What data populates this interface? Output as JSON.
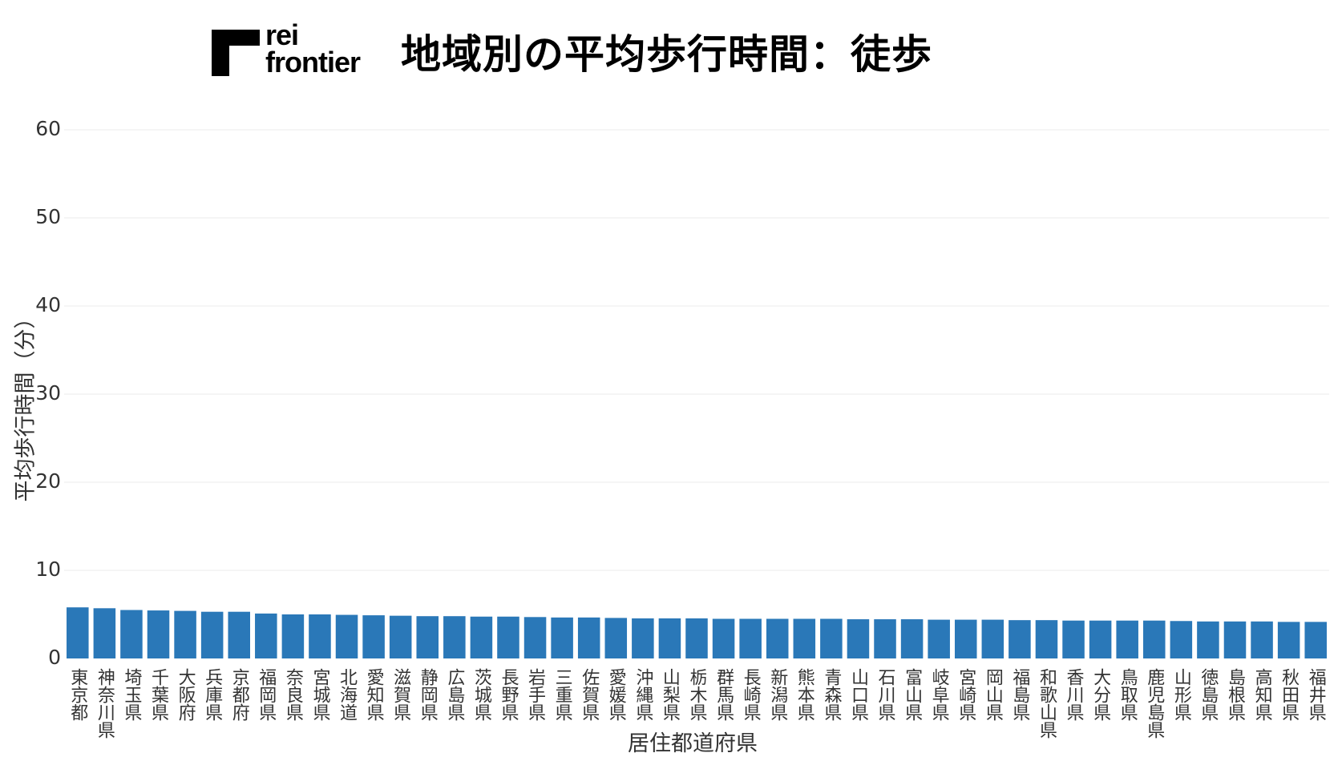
{
  "brand": {
    "logo_line1": "rei",
    "logo_line2": "frontier"
  },
  "colors": {
    "bar": "#2a78b8",
    "grid": "#ebebeb",
    "text": "#333333"
  },
  "chart_data": {
    "type": "bar",
    "title": "地域別の平均歩行時間：徒歩",
    "xlabel": "居住都道府県",
    "ylabel": "平均歩行時間（分）",
    "ylim": [
      0,
      60
    ],
    "yticks": [
      0,
      10,
      20,
      30,
      40,
      50,
      60
    ],
    "grid": true,
    "categories": [
      "東京都",
      "神奈川県",
      "埼玉県",
      "千葉県",
      "大阪府",
      "兵庫県",
      "京都府",
      "福岡県",
      "奈良県",
      "宮城県",
      "北海道",
      "愛知県",
      "滋賀県",
      "静岡県",
      "広島県",
      "茨城県",
      "長野県",
      "岩手県",
      "三重県",
      "佐賀県",
      "愛媛県",
      "沖縄県",
      "山梨県",
      "栃木県",
      "群馬県",
      "長崎県",
      "新潟県",
      "熊本県",
      "青森県",
      "山口県",
      "石川県",
      "富山県",
      "岐阜県",
      "宮崎県",
      "岡山県",
      "福島県",
      "和歌山県",
      "香川県",
      "大分県",
      "鳥取県",
      "鹿児島県",
      "山形県",
      "徳島県",
      "島根県",
      "高知県",
      "秋田県",
      "福井県"
    ],
    "values": [
      5.8,
      5.7,
      5.5,
      5.45,
      5.4,
      5.3,
      5.3,
      5.1,
      5.0,
      5.0,
      4.95,
      4.9,
      4.85,
      4.8,
      4.8,
      4.75,
      4.75,
      4.7,
      4.65,
      4.65,
      4.6,
      4.55,
      4.55,
      4.55,
      4.5,
      4.5,
      4.5,
      4.5,
      4.5,
      4.45,
      4.45,
      4.45,
      4.4,
      4.4,
      4.4,
      4.35,
      4.35,
      4.3,
      4.3,
      4.3,
      4.3,
      4.25,
      4.2,
      4.2,
      4.2,
      4.15,
      4.15
    ]
  }
}
